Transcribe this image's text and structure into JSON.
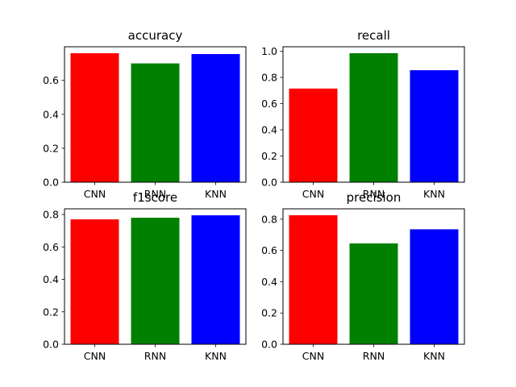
{
  "chart_data": [
    {
      "type": "bar",
      "title": "accuracy",
      "categories": [
        "CNN",
        "RNN",
        "KNN"
      ],
      "values": [
        0.76,
        0.7,
        0.755
      ],
      "colors": [
        "#ff0000",
        "#008000",
        "#0000ff"
      ],
      "ylim": [
        0,
        0.798
      ],
      "yticks": [
        0.0,
        0.2,
        0.4,
        0.6
      ],
      "ytick_labels": [
        "0.0",
        "0.2",
        "0.4",
        "0.6"
      ],
      "xlabel": "",
      "ylabel": "",
      "grid": false
    },
    {
      "type": "bar",
      "title": "recall",
      "categories": [
        "CNN",
        "RNN",
        "KNN"
      ],
      "values": [
        0.715,
        0.985,
        0.855
      ],
      "colors": [
        "#ff0000",
        "#008000",
        "#0000ff"
      ],
      "ylim": [
        0,
        1.034
      ],
      "yticks": [
        0.0,
        0.2,
        0.4,
        0.6,
        0.8,
        1.0
      ],
      "ytick_labels": [
        "0.0",
        "0.2",
        "0.4",
        "0.6",
        "0.8",
        "1.0"
      ],
      "xlabel": "",
      "ylabel": "",
      "grid": false
    },
    {
      "type": "bar",
      "title": "f1score",
      "categories": [
        "CNN",
        "RNN",
        "KNN"
      ],
      "values": [
        0.77,
        0.78,
        0.795
      ],
      "colors": [
        "#ff0000",
        "#008000",
        "#0000ff"
      ],
      "ylim": [
        0,
        0.835
      ],
      "yticks": [
        0.0,
        0.2,
        0.4,
        0.6,
        0.8
      ],
      "ytick_labels": [
        "0.0",
        "0.2",
        "0.4",
        "0.6",
        "0.8"
      ],
      "xlabel": "",
      "ylabel": "",
      "grid": false
    },
    {
      "type": "bar",
      "title": "precision",
      "categories": [
        "CNN",
        "RNN",
        "KNN"
      ],
      "values": [
        0.825,
        0.645,
        0.735
      ],
      "colors": [
        "#ff0000",
        "#008000",
        "#0000ff"
      ],
      "ylim": [
        0,
        0.866
      ],
      "yticks": [
        0.0,
        0.2,
        0.4,
        0.6,
        0.8
      ],
      "ytick_labels": [
        "0.0",
        "0.2",
        "0.4",
        "0.6",
        "0.8"
      ],
      "xlabel": "",
      "ylabel": "",
      "grid": false
    }
  ]
}
